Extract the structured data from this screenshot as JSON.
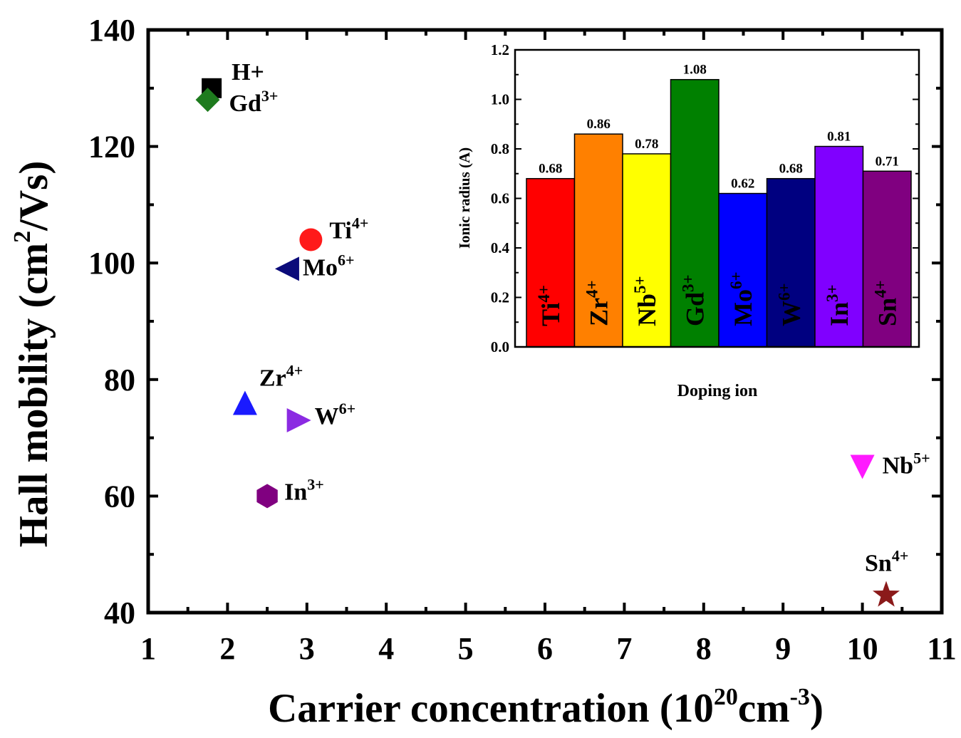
{
  "chart_data": [
    {
      "type": "scatter",
      "xlabel": {
        "main": "Carrier concentration (10",
        "sup1": "20",
        "mid": "cm",
        "sup2": "-3",
        "end": ")"
      },
      "ylabel": {
        "main": "Hall mobility (cm",
        "sup": "2",
        "end": "/Vs)"
      },
      "xlim": [
        1,
        11
      ],
      "ylim": [
        40,
        140
      ],
      "xticks": [
        "1",
        "2",
        "3",
        "4",
        "5",
        "6",
        "7",
        "8",
        "9",
        "10",
        "11"
      ],
      "yticks": [
        "40",
        "60",
        "80",
        "100",
        "120",
        "140"
      ],
      "points": [
        {
          "base": "H+",
          "sup": "",
          "x": 1.8,
          "y": 130,
          "color": "#000000",
          "marker": "square"
        },
        {
          "base": "Gd",
          "sup": "3+",
          "x": 1.75,
          "y": 128,
          "color": "#1e7b1e",
          "marker": "diamond"
        },
        {
          "base": "Ti",
          "sup": "4+",
          "x": 3.05,
          "y": 104,
          "color": "#ff1a1a",
          "marker": "circle"
        },
        {
          "base": "Mo",
          "sup": "6+",
          "x": 2.75,
          "y": 99,
          "color": "#0b0b7a",
          "marker": "triangle-left"
        },
        {
          "base": "Zr",
          "sup": "4+",
          "x": 2.22,
          "y": 76,
          "color": "#1a1aff",
          "marker": "triangle-up"
        },
        {
          "base": "W",
          "sup": "6+",
          "x": 2.9,
          "y": 73,
          "color": "#8b2be2",
          "marker": "triangle-right"
        },
        {
          "base": "In",
          "sup": "3+",
          "x": 2.5,
          "y": 60,
          "color": "#800080",
          "marker": "hexagon"
        },
        {
          "base": "Nb",
          "sup": "5+",
          "x": 10.0,
          "y": 65,
          "color": "#ff1aff",
          "marker": "triangle-down"
        },
        {
          "base": "Sn",
          "sup": "4+",
          "x": 10.3,
          "y": 43,
          "color": "#8b1a1a",
          "marker": "star"
        }
      ]
    },
    {
      "type": "bar",
      "xlabel": "Doping ion",
      "ylabel": "Ionic radius (A)",
      "ylim": [
        0,
        1.2
      ],
      "yticks": [
        "0.0",
        "0.2",
        "0.4",
        "0.6",
        "0.8",
        "1.0",
        "1.2"
      ],
      "categories": [
        {
          "base": "Ti",
          "sup": "4+"
        },
        {
          "base": "Zr",
          "sup": "4+"
        },
        {
          "base": "Nb",
          "sup": "5+"
        },
        {
          "base": "Gd",
          "sup": "3+"
        },
        {
          "base": "Mo",
          "sup": "6+"
        },
        {
          "base": "W",
          "sup": "6+"
        },
        {
          "base": "In",
          "sup": "3+"
        },
        {
          "base": "Sn",
          "sup": "4+"
        }
      ],
      "values": [
        0.68,
        0.86,
        0.78,
        1.08,
        0.62,
        0.68,
        0.81,
        0.71
      ],
      "value_labels": [
        "0.68",
        "0.86",
        "0.78",
        "1.08",
        "0.62",
        "0.68",
        "0.81",
        "0.71"
      ],
      "colors": [
        "#ff0000",
        "#ff8000",
        "#ffff00",
        "#008000",
        "#0000ff",
        "#000080",
        "#8000ff",
        "#800080"
      ]
    }
  ]
}
